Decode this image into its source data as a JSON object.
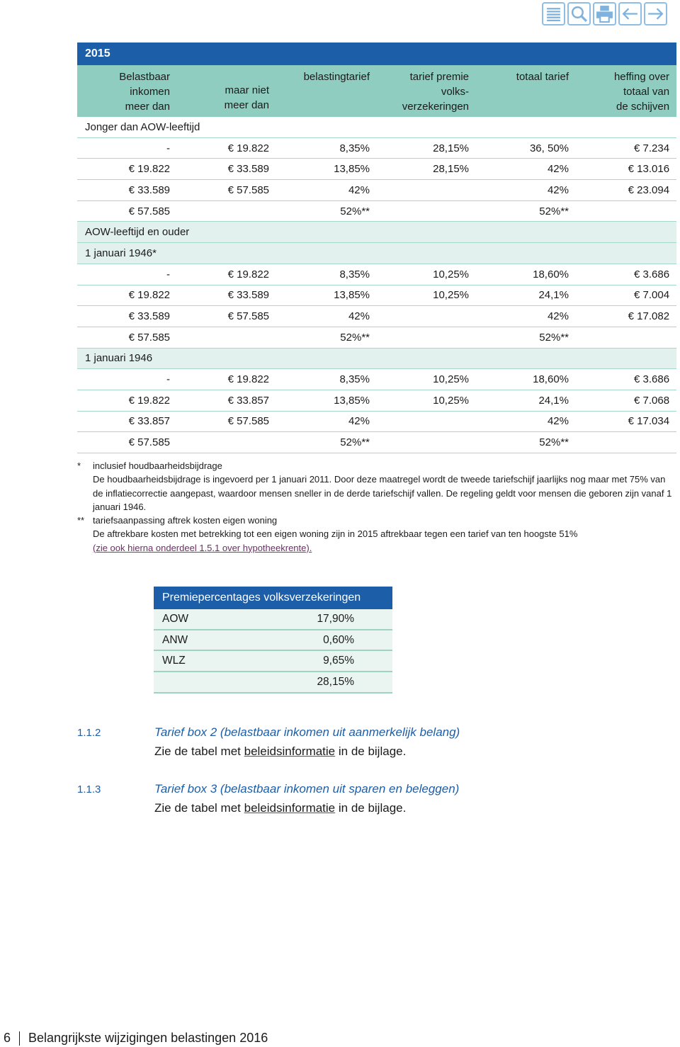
{
  "table": {
    "caption": "2015",
    "headers": [
      [
        "Belastbaar",
        "inkomen",
        "meer dan"
      ],
      [
        "maar niet",
        "meer dan"
      ],
      [
        "belastingtarief"
      ],
      [
        "tarief premie",
        "volks-",
        "verzekeringen"
      ],
      [
        "totaal tarief"
      ],
      [
        "heffing over",
        "totaal van",
        "de schijven"
      ]
    ],
    "body": [
      {
        "group": "Jonger dan AOW-leeftijd"
      },
      {
        "cells": [
          "-",
          "€ 19.822",
          "8,35%",
          "28,15%",
          "36, 50%",
          "€ 7.234"
        ]
      },
      {
        "cells": [
          "€ 19.822",
          "€ 33.589",
          "13,85%",
          "28,15%",
          "42%",
          "€ 13.016"
        ]
      },
      {
        "cells": [
          "€ 33.589",
          "€ 57.585",
          "42%",
          null,
          "42%",
          "€ 23.094"
        ]
      },
      {
        "cells": [
          "€ 57.585",
          null,
          "52%**",
          null,
          "52%**",
          null
        ]
      },
      {
        "group": "AOW-leeftijd en ouder"
      },
      {
        "subgroup": "1 januari 1946*"
      },
      {
        "cells": [
          "-",
          "€ 19.822",
          "8,35%",
          "10,25%",
          "18,60%",
          "€ 3.686"
        ]
      },
      {
        "cells": [
          "€ 19.822",
          "€ 33.589",
          "13,85%",
          "10,25%",
          "24,1%",
          "€ 7.004"
        ]
      },
      {
        "cells": [
          "€ 33.589",
          "€ 57.585",
          "42%",
          null,
          "42%",
          "€ 17.082"
        ]
      },
      {
        "cells": [
          "€ 57.585",
          null,
          "52%**",
          null,
          "52%**",
          null
        ]
      },
      {
        "subgroup": "1 januari 1946"
      },
      {
        "cells": [
          "-",
          "€ 19.822",
          "8,35%",
          "10,25%",
          "18,60%",
          "€ 3.686"
        ]
      },
      {
        "cells": [
          "€ 19.822",
          "€ 33.857",
          "13,85%",
          "10,25%",
          "24,1%",
          "€ 7.068"
        ]
      },
      {
        "cells": [
          "€ 33.857",
          "€ 57.585",
          "42%",
          null,
          "42%",
          "€ 17.034"
        ]
      },
      {
        "cells": [
          "€ 57.585",
          null,
          "52%**",
          null,
          "52%**",
          null
        ]
      }
    ]
  },
  "notes": [
    {
      "marker": "*",
      "title": "inclusief houdbaarheidsbijdrage",
      "text": "De houdbaarheidsbijdrage is ingevoerd per 1 januari 2011. Door deze maatregel wordt de tweede tariefschijf jaarlijks nog maar met 75% van de inflatiecorrectie aangepast, waardoor mensen sneller in de derde tariefschijf vallen. De regeling geldt voor mensen die geboren zijn vanaf 1 januari 1946."
    },
    {
      "marker": "**",
      "title": "tariefsaanpassing aftrek kosten eigen woning",
      "text": "De aftrekbare kosten met betrekking tot een eigen woning zijn in 2015 aftrekbaar tegen een tarief van ten hoogste 51%",
      "link": "(zie ook hierna onderdeel 1.5.1 over hypotheekrente)."
    }
  ],
  "premie": {
    "title": "Premiepercentages volksverzekeringen",
    "rows": [
      [
        "AOW",
        "17,90%"
      ],
      [
        "ANW",
        "0,60%"
      ],
      [
        "WLZ",
        "9,65%"
      ],
      [
        null,
        "28,15%"
      ]
    ]
  },
  "sections": [
    {
      "number": "1.1.2",
      "title": "Tarief box 2 (belastbaar inkomen uit aanmerkelijk belang)",
      "text_before": "Zie de tabel met ",
      "link": "beleidsinformatie",
      "text_after": " in de bijlage."
    },
    {
      "number": "1.1.3",
      "title": "Tarief box 3 (belastbaar inkomen uit sparen en beleggen)",
      "text_before": "Zie de tabel met ",
      "link": "beleidsinformatie",
      "text_after": " in de bijlage."
    }
  ],
  "footer": {
    "page": "6",
    "title": "Belangrijkste wijzigingen belastingen 2016"
  }
}
